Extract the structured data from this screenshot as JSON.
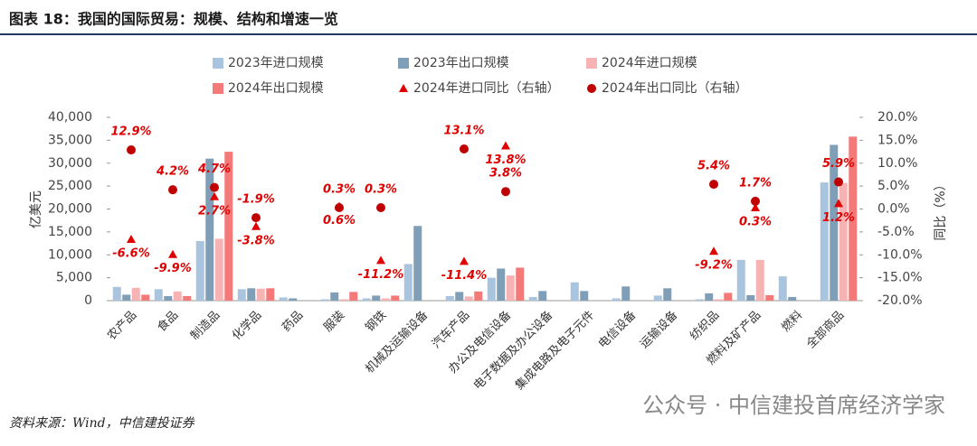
{
  "chart_data": {
    "type": "bar",
    "title": "图表 18：我国的国际贸易：规模、结构和增速一览",
    "source": "资料来源：Wind，中信建投证券",
    "watermark": "公众号 · 中信建投首席经济学家",
    "y_label": "亿美元",
    "y2_label": "同比（%）",
    "legend": "top",
    "categories": [
      "农产品",
      "食品",
      "制造品",
      "化学品",
      "药品",
      "服装",
      "钢铁",
      "机械及运输设备",
      "汽车产品",
      "办公及电信设备",
      "电子数据及办公设备",
      "集成电路及电子元件",
      "电信设备",
      "运输设备",
      "纺织品",
      "燃料及矿产品",
      "燃料",
      "全部商品"
    ],
    "ylim": [
      0,
      40000
    ],
    "yticks": [
      0,
      {
        "value": 5000,
        "label": "5,000"
      },
      {
        "value": 10000,
        "label": "10,000"
      },
      {
        "value": 15000,
        "label": "15,000"
      },
      {
        "value": 20000,
        "label": "20,000"
      },
      {
        "value": 25000,
        "label": "25,000"
      },
      {
        "value": 30000,
        "label": "30,000"
      },
      {
        "value": 35000,
        "label": "35,000"
      },
      {
        "value": 40000,
        "label": "40,000"
      }
    ],
    "y2lim": [
      -20,
      20
    ],
    "y2ticks": [
      {
        "value": -20,
        "label": "-20.0%"
      },
      {
        "value": -15,
        "label": "-15.0%"
      },
      {
        "value": -10,
        "label": "-10.0%"
      },
      {
        "value": -5,
        "label": "-5.0%"
      },
      {
        "value": 0,
        "label": "0.0%"
      },
      {
        "value": 5,
        "label": "5.0%"
      },
      {
        "value": 10,
        "label": "10.0%"
      },
      {
        "value": 15,
        "label": "15.0%"
      },
      {
        "value": 20,
        "label": "20.0%"
      }
    ],
    "series": [
      {
        "name": "2023年进口规模",
        "type": "bar",
        "color": "#a9c4de",
        "values": [
          3000,
          2500,
          13000,
          2500,
          700,
          300,
          500,
          8000,
          1000,
          5000,
          800,
          4000,
          500,
          1100,
          300,
          8900,
          5300,
          25800
        ]
      },
      {
        "name": "2023年出口规模",
        "type": "bar",
        "color": "#7f9fb8",
        "values": [
          1300,
          1000,
          31000,
          2700,
          500,
          1800,
          1100,
          16300,
          1900,
          7000,
          2100,
          2100,
          3100,
          2700,
          1600,
          1200,
          800,
          34000
        ]
      },
      {
        "name": "2024年进口规模",
        "type": "bar",
        "color": "#f7b3b3",
        "values": [
          2800,
          2000,
          13500,
          2600,
          null,
          300,
          500,
          null,
          900,
          5500,
          null,
          null,
          null,
          null,
          300,
          8900,
          null,
          25700
        ]
      },
      {
        "name": "2024年出口规模",
        "type": "bar",
        "color": "#f47a7a",
        "values": [
          1300,
          1000,
          32500,
          2700,
          null,
          1900,
          1100,
          null,
          2000,
          7200,
          null,
          null,
          null,
          null,
          1700,
          1200,
          null,
          35800
        ]
      },
      {
        "name": "2024年进口同比（右轴）",
        "type": "scatter",
        "marker": "triangle",
        "axis": "y2",
        "color": "#e00000",
        "values": [
          -6.6,
          -9.9,
          2.7,
          -3.8,
          null,
          0.6,
          -11.2,
          null,
          -11.4,
          13.8,
          null,
          null,
          null,
          null,
          -9.2,
          0.3,
          null,
          1.2
        ],
        "value_labels": [
          "-6.6%",
          "-9.9%",
          "2.7%",
          "-3.8%",
          null,
          "0.6%",
          "-11.2%",
          null,
          "-11.4%",
          "13.8%",
          null,
          null,
          null,
          null,
          "-9.2%",
          "0.3%",
          null,
          "1.2%"
        ]
      },
      {
        "name": "2024年出口同比（右轴）",
        "type": "scatter",
        "marker": "circle",
        "axis": "y2",
        "color": "#c00000",
        "values": [
          12.9,
          4.2,
          4.7,
          -1.9,
          null,
          0.3,
          0.3,
          null,
          13.1,
          3.8,
          null,
          null,
          null,
          null,
          5.4,
          1.7,
          null,
          5.9
        ],
        "value_labels": [
          "12.9%",
          "4.2%",
          "4.7%",
          "-1.9%",
          null,
          "0.3%",
          "0.3%",
          null,
          "13.1%",
          "3.8%",
          null,
          null,
          null,
          null,
          "5.4%",
          "1.7%",
          null,
          "5.9%"
        ]
      }
    ]
  }
}
